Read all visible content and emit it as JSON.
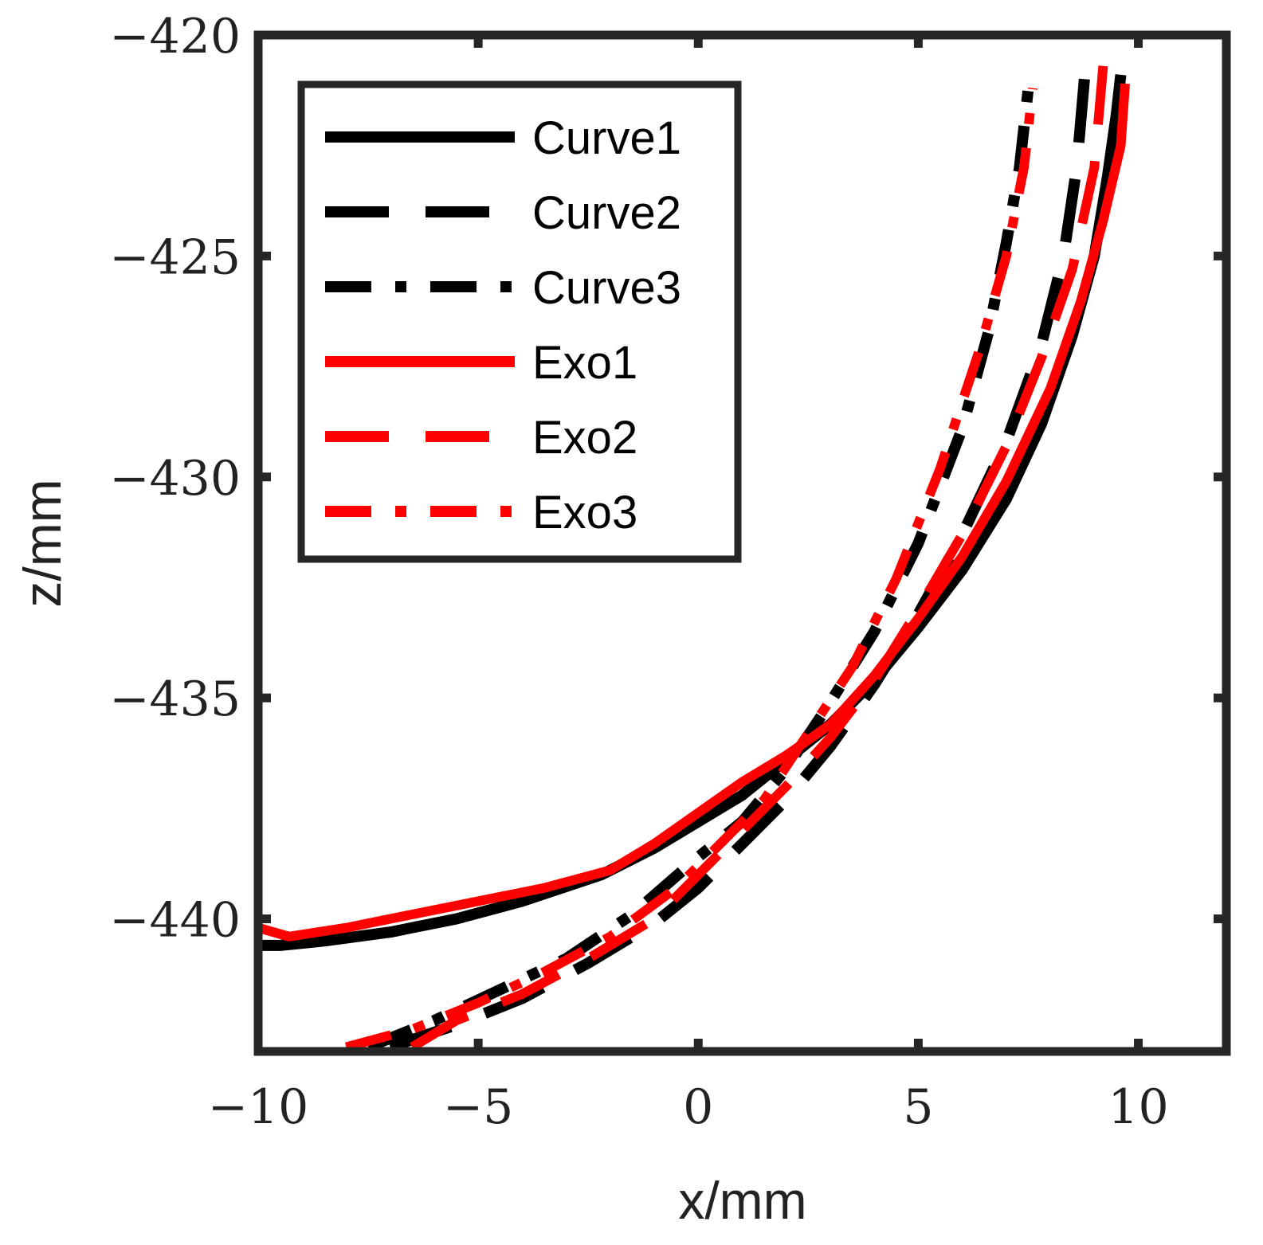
{
  "chart_data": {
    "type": "line",
    "title": "",
    "xlabel": "x/mm",
    "ylabel": "z/mm",
    "xlim": [
      -10,
      12
    ],
    "ylim": [
      -443,
      -420
    ],
    "xticks": [
      -10,
      -5,
      0,
      5,
      10
    ],
    "yticks": [
      -420,
      -425,
      -430,
      -435,
      -440
    ],
    "xtick_labels": [
      "−10",
      "−5",
      "0",
      "5",
      "10"
    ],
    "ytick_labels": [
      "−420",
      "−425",
      "−430",
      "−435",
      "−440"
    ],
    "grid": false,
    "legend_position": "top-left",
    "series": [
      {
        "name": "Curve1",
        "color": "#000000",
        "style": "solid",
        "x": [
          -10,
          -9.5,
          -8.5,
          -7,
          -5.5,
          -4,
          -2.2,
          -1,
          0,
          1,
          2,
          3,
          4,
          5,
          6,
          7,
          7.8,
          8.5,
          9,
          9.3,
          9.5,
          9.6
        ],
        "y": [
          -440.6,
          -440.6,
          -440.5,
          -440.3,
          -440.0,
          -439.6,
          -439.0,
          -438.4,
          -437.8,
          -437.2,
          -436.4,
          -435.6,
          -434.6,
          -433.4,
          -432.1,
          -430.5,
          -428.8,
          -426.8,
          -425.0,
          -423.2,
          -421.8,
          -420.9
        ]
      },
      {
        "name": "Curve2",
        "color": "#000000",
        "style": "dashed",
        "x": [
          -7,
          -5.5,
          -4,
          -2.5,
          -1,
          0,
          1,
          2,
          3,
          4,
          5,
          6,
          7,
          7.8,
          8.3,
          8.6,
          8.8
        ],
        "y": [
          -442.9,
          -442.4,
          -441.8,
          -441.0,
          -440.1,
          -439.3,
          -438.3,
          -437.3,
          -436.1,
          -434.7,
          -433.1,
          -431.3,
          -429.2,
          -427.0,
          -425.0,
          -423.0,
          -420.7
        ]
      },
      {
        "name": "Curve3",
        "color": "#000000",
        "style": "dashdot",
        "x": [
          -7.5,
          -6,
          -4.5,
          -3,
          -1.5,
          0,
          1,
          2,
          3,
          4,
          5,
          6,
          6.6,
          7,
          7.3,
          7.5
        ],
        "y": [
          -442.9,
          -442.3,
          -441.6,
          -440.9,
          -439.9,
          -438.6,
          -437.8,
          -436.6,
          -435.1,
          -433.5,
          -431.5,
          -428.9,
          -426.7,
          -424.7,
          -423.0,
          -421.2
        ]
      },
      {
        "name": "Exo1",
        "color": "#ff0000",
        "style": "solid",
        "x": [
          -10,
          -9.3,
          -8,
          -6.5,
          -5,
          -3.5,
          -2,
          -1,
          0,
          1,
          2,
          3,
          4,
          5,
          6,
          7,
          8,
          8.7,
          9.2,
          9.6,
          9.7
        ],
        "y": [
          -440.2,
          -440.4,
          -440.2,
          -439.9,
          -439.6,
          -439.3,
          -438.9,
          -438.3,
          -437.6,
          -436.9,
          -436.3,
          -435.6,
          -434.5,
          -433.2,
          -431.8,
          -430.1,
          -428.0,
          -426.0,
          -424.2,
          -422.5,
          -421.1
        ]
      },
      {
        "name": "Exo2",
        "color": "#ff0000",
        "style": "dashed",
        "x": [
          -6.5,
          -5.5,
          -4,
          -2.5,
          -1,
          0,
          1,
          2,
          3,
          4,
          5,
          6,
          7,
          7.8,
          8.5,
          9,
          9.2
        ],
        "y": [
          -442.9,
          -442.3,
          -441.7,
          -440.9,
          -440.0,
          -439.0,
          -438.0,
          -437.0,
          -435.9,
          -434.6,
          -433.0,
          -431.3,
          -429.3,
          -427.3,
          -425.3,
          -423.0,
          -420.7
        ]
      },
      {
        "name": "Exo3",
        "color": "#ff0000",
        "style": "dashdot",
        "x": [
          -8,
          -6.5,
          -5,
          -3.5,
          -2,
          -0.5,
          0.5,
          1.5,
          2.5,
          3.5,
          4.5,
          5.5,
          6.4,
          7,
          7.4,
          7.6
        ],
        "y": [
          -442.9,
          -442.5,
          -441.9,
          -441.2,
          -440.4,
          -439.3,
          -438.3,
          -437.3,
          -435.8,
          -434.3,
          -432.3,
          -429.8,
          -427.1,
          -425.0,
          -423.0,
          -421.2
        ]
      }
    ]
  }
}
